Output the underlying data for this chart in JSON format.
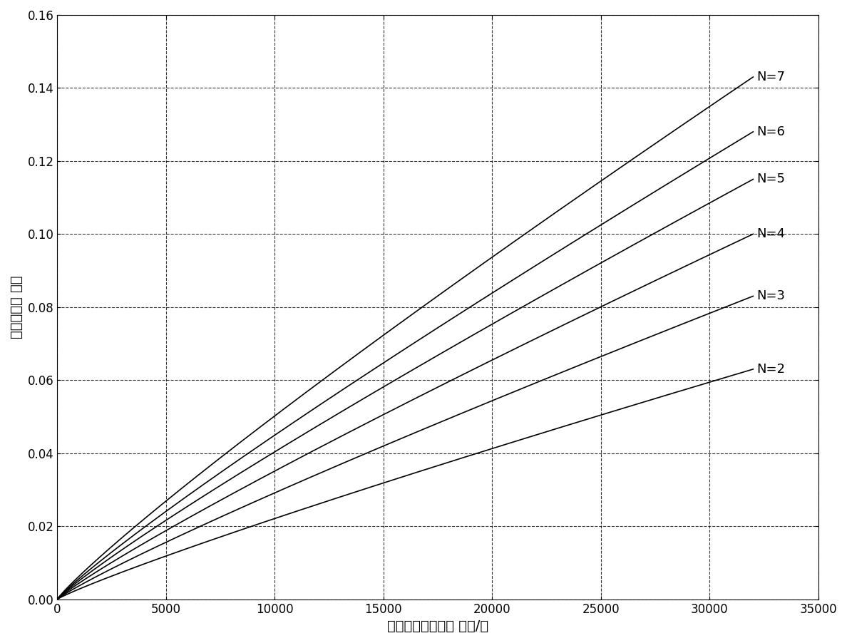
{
  "xlim": [
    0,
    35000
  ],
  "ylim": [
    0,
    0.16
  ],
  "xticks": [
    0,
    5000,
    10000,
    15000,
    20000,
    25000,
    30000,
    35000
  ],
  "yticks": [
    0,
    0.02,
    0.04,
    0.06,
    0.08,
    0.1,
    0.12,
    0.14,
    0.16
  ],
  "xlabel": "节点最大频率偏差 弧度/秒",
  "ylabel": "相位调整量 弧度",
  "N_values": [
    2,
    3,
    4,
    5,
    6,
    7
  ],
  "x_max": 32000,
  "num_points": 1000,
  "line_color": "#000000",
  "background_color": "#ffffff",
  "grid_color": "#000000",
  "grid_linestyle": "--",
  "grid_alpha": 0.8,
  "label_fontsize": 14,
  "tick_fontsize": 12,
  "annotation_fontsize": 13
}
